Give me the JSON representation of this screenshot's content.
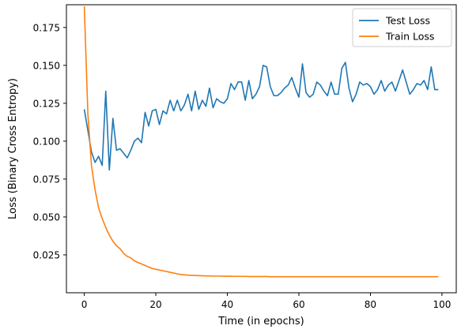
{
  "chart_data": {
    "type": "line",
    "title": "",
    "xlabel": "Time (in epochs)",
    "ylabel": "Loss (Binary Cross Entropy)",
    "xlim": [
      -5,
      104
    ],
    "ylim": [
      0.0,
      0.19
    ],
    "grid": false,
    "legend_position": "top-right",
    "x_ticks": [
      0,
      20,
      40,
      60,
      80,
      100
    ],
    "x_tick_labels": [
      "0",
      "20",
      "40",
      "60",
      "80",
      "100"
    ],
    "y_ticks": [
      0.025,
      0.05,
      0.075,
      0.1,
      0.125,
      0.15,
      0.175
    ],
    "y_tick_labels": [
      "0.025",
      "0.050",
      "0.075",
      "0.100",
      "0.125",
      "0.150",
      "0.175"
    ],
    "series": [
      {
        "name": "Test Loss",
        "color": "#1f77b4",
        "x": [
          0,
          1,
          2,
          3,
          4,
          5,
          6,
          7,
          8,
          9,
          10,
          11,
          12,
          13,
          14,
          15,
          16,
          17,
          18,
          19,
          20,
          21,
          22,
          23,
          24,
          25,
          26,
          27,
          28,
          29,
          30,
          31,
          32,
          33,
          34,
          35,
          36,
          37,
          38,
          39,
          40,
          41,
          42,
          43,
          44,
          45,
          46,
          47,
          48,
          49,
          50,
          51,
          52,
          53,
          54,
          55,
          56,
          57,
          58,
          59,
          60,
          61,
          62,
          63,
          64,
          65,
          66,
          67,
          68,
          69,
          70,
          71,
          72,
          73,
          74,
          75,
          76,
          77,
          78,
          79,
          80,
          81,
          82,
          83,
          84,
          85,
          86,
          87,
          88,
          89,
          90,
          91,
          92,
          93,
          94,
          95,
          96,
          97,
          98,
          99
        ],
        "values": [
          0.121,
          0.107,
          0.093,
          0.086,
          0.09,
          0.084,
          0.133,
          0.081,
          0.115,
          0.094,
          0.095,
          0.092,
          0.089,
          0.094,
          0.1,
          0.102,
          0.099,
          0.119,
          0.11,
          0.12,
          0.121,
          0.111,
          0.12,
          0.118,
          0.127,
          0.12,
          0.127,
          0.12,
          0.124,
          0.131,
          0.12,
          0.133,
          0.121,
          0.127,
          0.123,
          0.135,
          0.122,
          0.128,
          0.126,
          0.125,
          0.128,
          0.138,
          0.134,
          0.139,
          0.139,
          0.127,
          0.14,
          0.128,
          0.131,
          0.136,
          0.15,
          0.149,
          0.136,
          0.13,
          0.13,
          0.132,
          0.135,
          0.137,
          0.142,
          0.135,
          0.129,
          0.151,
          0.132,
          0.129,
          0.131,
          0.139,
          0.137,
          0.133,
          0.13,
          0.139,
          0.131,
          0.131,
          0.148,
          0.152,
          0.135,
          0.126,
          0.131,
          0.139,
          0.137,
          0.138,
          0.136,
          0.131,
          0.134,
          0.14,
          0.133,
          0.137,
          0.139,
          0.133,
          0.14,
          0.147,
          0.139,
          0.131,
          0.134,
          0.138,
          0.137,
          0.14,
          0.134,
          0.149,
          0.134,
          0.134
        ]
      },
      {
        "name": "Train Loss",
        "color": "#ff7f0e",
        "x": [
          0,
          1,
          2,
          3,
          4,
          5,
          6,
          7,
          8,
          9,
          10,
          11,
          12,
          13,
          14,
          15,
          16,
          17,
          18,
          19,
          20,
          21,
          22,
          23,
          24,
          25,
          26,
          27,
          28,
          29,
          30,
          31,
          32,
          33,
          34,
          35,
          36,
          37,
          38,
          39,
          40,
          41,
          42,
          43,
          44,
          45,
          46,
          47,
          48,
          49,
          50,
          51,
          52,
          53,
          54,
          55,
          56,
          57,
          58,
          59,
          60,
          61,
          62,
          63,
          64,
          65,
          66,
          67,
          68,
          69,
          70,
          71,
          72,
          73,
          74,
          75,
          76,
          77,
          78,
          79,
          80,
          81,
          82,
          83,
          84,
          85,
          86,
          87,
          88,
          89,
          90,
          91,
          92,
          93,
          94,
          95,
          96,
          97,
          98,
          99
        ],
        "values": [
          0.189,
          0.118,
          0.084,
          0.068,
          0.056,
          0.049,
          0.043,
          0.038,
          0.034,
          0.031,
          0.029,
          0.026,
          0.024,
          0.023,
          0.021,
          0.02,
          0.019,
          0.018,
          0.017,
          0.016,
          0.0155,
          0.015,
          0.0145,
          0.014,
          0.0135,
          0.013,
          0.0125,
          0.012,
          0.0118,
          0.0116,
          0.0115,
          0.0114,
          0.0113,
          0.0112,
          0.0111,
          0.0111,
          0.011,
          0.011,
          0.011,
          0.0109,
          0.0109,
          0.0109,
          0.0108,
          0.0108,
          0.0108,
          0.0108,
          0.0107,
          0.0107,
          0.0107,
          0.0107,
          0.0107,
          0.0107,
          0.0106,
          0.0106,
          0.0106,
          0.0106,
          0.0106,
          0.0106,
          0.0106,
          0.0106,
          0.0106,
          0.0106,
          0.0106,
          0.0106,
          0.0106,
          0.0106,
          0.0106,
          0.0106,
          0.0106,
          0.0106,
          0.0106,
          0.0106,
          0.0106,
          0.0106,
          0.0106,
          0.0106,
          0.0106,
          0.0106,
          0.0106,
          0.0106,
          0.0106,
          0.0106,
          0.0106,
          0.0106,
          0.0106,
          0.0106,
          0.0106,
          0.0106,
          0.0106,
          0.0106,
          0.0106,
          0.0106,
          0.0106,
          0.0106,
          0.0106,
          0.0106,
          0.0106,
          0.0106,
          0.0106,
          0.0106
        ]
      }
    ]
  }
}
